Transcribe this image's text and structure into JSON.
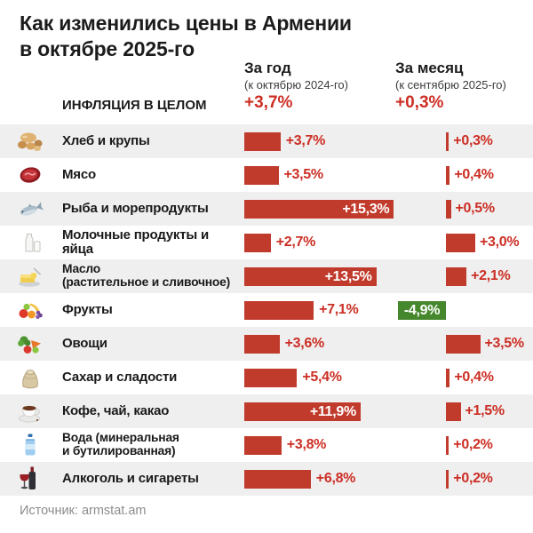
{
  "title": {
    "line1": "Как изменились цены в Армении",
    "line2": "в октябре 2025-го"
  },
  "columns": {
    "year": {
      "label": "За год",
      "sub": "(к октябрю 2024-го)"
    },
    "month": {
      "label": "За месяц",
      "sub": "(к сентябрю 2025-го)"
    }
  },
  "overall": {
    "label": "ИНФЛЯЦИЯ В ЦЕЛОМ",
    "year": "+3,7%",
    "month": "+0,3%"
  },
  "source": "Источник: armstat.am",
  "colors": {
    "bar_red": "#c13b2d",
    "bar_green": "#45872c",
    "text_red": "#cc2e24",
    "row_alt_bg": "#efefef",
    "divider": "#9e9e9e",
    "title_text": "#1c1c1c",
    "source_text": "#8c8c8c"
  },
  "rows": [
    {
      "icon": "bread-icon",
      "label": "Хлеб и крупы",
      "year_value": 3.7,
      "year_label": "+3,7%",
      "month_value": 0.3,
      "month_label": "+0,3%"
    },
    {
      "icon": "meat-icon",
      "label": "Мясо",
      "year_value": 3.5,
      "year_label": "+3,5%",
      "month_value": 0.4,
      "month_label": "+0,4%"
    },
    {
      "icon": "fish-icon",
      "label": "Рыба и морепродукты",
      "year_value": 15.3,
      "year_label": "+15,3%",
      "month_value": 0.5,
      "month_label": "+0,5%"
    },
    {
      "icon": "milk-icon",
      "label": "Молочные продукты и яйца",
      "year_value": 2.7,
      "year_label": "+2,7%",
      "month_value": 3.0,
      "month_label": "+3,0%"
    },
    {
      "icon": "butter-icon",
      "label": "Масло\n(растительное и сливочное)",
      "year_value": 13.5,
      "year_label": "+13,5%",
      "month_value": 2.1,
      "month_label": "+2,1%"
    },
    {
      "icon": "fruits-icon",
      "label": "Фрукты",
      "year_value": 7.1,
      "year_label": "+7,1%",
      "month_value": -4.9,
      "month_label": "-4,9%"
    },
    {
      "icon": "vegetables-icon",
      "label": "Овощи",
      "year_value": 3.6,
      "year_label": "+3,6%",
      "month_value": 3.5,
      "month_label": "+3,5%"
    },
    {
      "icon": "sugar-icon",
      "label": "Сахар и сладости",
      "year_value": 5.4,
      "year_label": "+5,4%",
      "month_value": 0.4,
      "month_label": "+0,4%"
    },
    {
      "icon": "coffee-icon",
      "label": "Кофе, чай, какао",
      "year_value": 11.9,
      "year_label": "+11,9%",
      "month_value": 1.5,
      "month_label": "+1,5%"
    },
    {
      "icon": "water-icon",
      "label": "Вода (минеральная\nи бутилированная)",
      "year_value": 3.8,
      "year_label": "+3,8%",
      "month_value": 0.2,
      "month_label": "+0,2%"
    },
    {
      "icon": "alcohol-icon",
      "label": "Алкоголь и сигареты",
      "year_value": 6.8,
      "year_label": "+6,8%",
      "month_value": 0.2,
      "month_label": "+0,2%"
    }
  ],
  "chart_data": {
    "type": "bar",
    "orientation": "horizontal",
    "title": "Как изменились цены в Армении в октябре 2025-го",
    "unit": "%",
    "categories": [
      "Хлеб и крупы",
      "Мясо",
      "Рыба и морепродукты",
      "Молочные продукты и яйца",
      "Масло (растительное и сливочное)",
      "Фрукты",
      "Овощи",
      "Сахар и сладости",
      "Кофе, чай, какао",
      "Вода (минеральная и бутилированная)",
      "Алкоголь и сигареты"
    ],
    "series": [
      {
        "name": "За год (к октябрю 2024-го)",
        "values": [
          3.7,
          3.5,
          15.3,
          2.7,
          13.5,
          7.1,
          3.6,
          5.4,
          11.9,
          3.8,
          6.8
        ]
      },
      {
        "name": "За месяц (к сентябрю 2025-го)",
        "values": [
          0.3,
          0.4,
          0.5,
          3.0,
          2.1,
          -4.9,
          3.5,
          0.4,
          1.5,
          0.2,
          0.2
        ]
      }
    ],
    "overall_inflation": {
      "year": 3.7,
      "month": 0.3
    },
    "positive_color": "#c13b2d",
    "negative_color": "#45872c",
    "source": "armstat.am"
  }
}
